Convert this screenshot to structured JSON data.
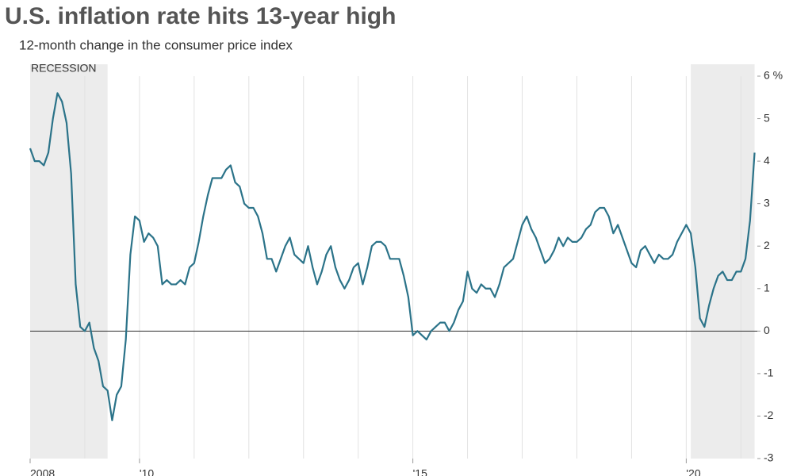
{
  "chart_data": {
    "type": "line",
    "title": "U.S. inflation rate hits 13-year high",
    "subtitle": "12-month change in the consumer price index",
    "recession_label": "RECESSION",
    "recessions": [
      {
        "start": "2007-12",
        "end": "2009-06"
      },
      {
        "start": "2020-02",
        "end": "2021-04"
      }
    ],
    "x": [
      "2008-01",
      "2008-02",
      "2008-03",
      "2008-04",
      "2008-05",
      "2008-06",
      "2008-07",
      "2008-08",
      "2008-09",
      "2008-10",
      "2008-11",
      "2008-12",
      "2009-01",
      "2009-02",
      "2009-03",
      "2009-04",
      "2009-05",
      "2009-06",
      "2009-07",
      "2009-08",
      "2009-09",
      "2009-10",
      "2009-11",
      "2009-12",
      "2010-01",
      "2010-02",
      "2010-03",
      "2010-04",
      "2010-05",
      "2010-06",
      "2010-07",
      "2010-08",
      "2010-09",
      "2010-10",
      "2010-11",
      "2010-12",
      "2011-01",
      "2011-02",
      "2011-03",
      "2011-04",
      "2011-05",
      "2011-06",
      "2011-07",
      "2011-08",
      "2011-09",
      "2011-10",
      "2011-11",
      "2011-12",
      "2012-01",
      "2012-02",
      "2012-03",
      "2012-04",
      "2012-05",
      "2012-06",
      "2012-07",
      "2012-08",
      "2012-09",
      "2012-10",
      "2012-11",
      "2012-12",
      "2013-01",
      "2013-02",
      "2013-03",
      "2013-04",
      "2013-05",
      "2013-06",
      "2013-07",
      "2013-08",
      "2013-09",
      "2013-10",
      "2013-11",
      "2013-12",
      "2014-01",
      "2014-02",
      "2014-03",
      "2014-04",
      "2014-05",
      "2014-06",
      "2014-07",
      "2014-08",
      "2014-09",
      "2014-10",
      "2014-11",
      "2014-12",
      "2015-01",
      "2015-02",
      "2015-03",
      "2015-04",
      "2015-05",
      "2015-06",
      "2015-07",
      "2015-08",
      "2015-09",
      "2015-10",
      "2015-11",
      "2015-12",
      "2016-01",
      "2016-02",
      "2016-03",
      "2016-04",
      "2016-05",
      "2016-06",
      "2016-07",
      "2016-08",
      "2016-09",
      "2016-10",
      "2016-11",
      "2016-12",
      "2017-01",
      "2017-02",
      "2017-03",
      "2017-04",
      "2017-05",
      "2017-06",
      "2017-07",
      "2017-08",
      "2017-09",
      "2017-10",
      "2017-11",
      "2017-12",
      "2018-01",
      "2018-02",
      "2018-03",
      "2018-04",
      "2018-05",
      "2018-06",
      "2018-07",
      "2018-08",
      "2018-09",
      "2018-10",
      "2018-11",
      "2018-12",
      "2019-01",
      "2019-02",
      "2019-03",
      "2019-04",
      "2019-05",
      "2019-06",
      "2019-07",
      "2019-08",
      "2019-09",
      "2019-10",
      "2019-11",
      "2019-12",
      "2020-01",
      "2020-02",
      "2020-03",
      "2020-04",
      "2020-05",
      "2020-06",
      "2020-07",
      "2020-08",
      "2020-09",
      "2020-10",
      "2020-11",
      "2020-12",
      "2021-01",
      "2021-02",
      "2021-03",
      "2021-04"
    ],
    "series": [
      {
        "name": "CPI 12-month change",
        "color": "#2b7389",
        "values": [
          4.3,
          4.0,
          4.0,
          3.9,
          4.2,
          5.0,
          5.6,
          5.4,
          4.9,
          3.7,
          1.1,
          0.1,
          0.0,
          0.2,
          -0.4,
          -0.7,
          -1.3,
          -1.4,
          -2.1,
          -1.5,
          -1.3,
          -0.2,
          1.8,
          2.7,
          2.6,
          2.1,
          2.3,
          2.2,
          2.0,
          1.1,
          1.2,
          1.1,
          1.1,
          1.2,
          1.1,
          1.5,
          1.6,
          2.1,
          2.7,
          3.2,
          3.6,
          3.6,
          3.6,
          3.8,
          3.9,
          3.5,
          3.4,
          3.0,
          2.9,
          2.9,
          2.7,
          2.3,
          1.7,
          1.7,
          1.4,
          1.7,
          2.0,
          2.2,
          1.8,
          1.7,
          1.6,
          2.0,
          1.5,
          1.1,
          1.4,
          1.8,
          2.0,
          1.5,
          1.2,
          1.0,
          1.2,
          1.5,
          1.6,
          1.1,
          1.5,
          2.0,
          2.1,
          2.1,
          2.0,
          1.7,
          1.7,
          1.7,
          1.3,
          0.8,
          -0.1,
          0.0,
          -0.1,
          -0.2,
          0.0,
          0.1,
          0.2,
          0.2,
          0.0,
          0.2,
          0.5,
          0.7,
          1.4,
          1.0,
          0.9,
          1.1,
          1.0,
          1.0,
          0.8,
          1.1,
          1.5,
          1.6,
          1.7,
          2.1,
          2.5,
          2.7,
          2.4,
          2.2,
          1.9,
          1.6,
          1.7,
          1.9,
          2.2,
          2.0,
          2.2,
          2.1,
          2.1,
          2.2,
          2.4,
          2.5,
          2.8,
          2.9,
          2.9,
          2.7,
          2.3,
          2.5,
          2.2,
          1.9,
          1.6,
          1.5,
          1.9,
          2.0,
          1.8,
          1.6,
          1.8,
          1.7,
          1.7,
          1.8,
          2.1,
          2.3,
          2.5,
          2.3,
          1.5,
          0.3,
          0.1,
          0.6,
          1.0,
          1.3,
          1.4,
          1.2,
          1.2,
          1.4,
          1.4,
          1.7,
          2.6,
          4.2
        ]
      }
    ],
    "xlim": [
      2008,
      2021.3
    ],
    "xticks": [
      {
        "value": 2008,
        "label": "2008"
      },
      {
        "value": 2010,
        "label": "'10"
      },
      {
        "value": 2015,
        "label": "'15"
      },
      {
        "value": 2020,
        "label": "'20"
      }
    ],
    "xgrid": [
      2009,
      2010,
      2011,
      2012,
      2013,
      2014,
      2015,
      2016,
      2017,
      2018,
      2019,
      2020,
      2021
    ],
    "ylim": [
      -3,
      6
    ],
    "yticks": [
      -3,
      -2,
      -1,
      0,
      1,
      2,
      3,
      4,
      5,
      {
        "value": 6,
        "label": "6 %"
      }
    ],
    "zero_line": true
  }
}
